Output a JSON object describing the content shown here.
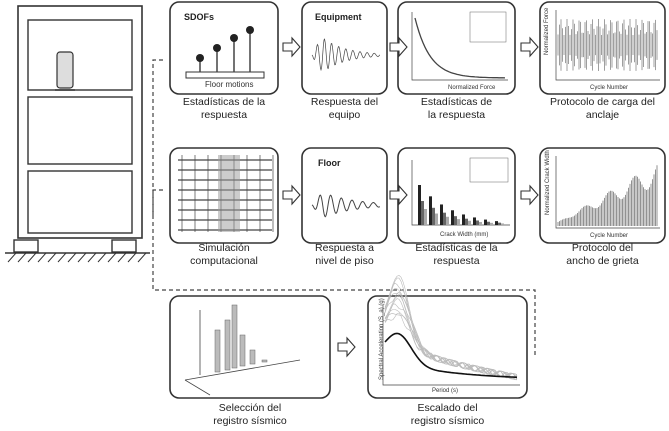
{
  "panels": [
    {
      "caption": [
        "Estadísticas de la",
        "respuesta"
      ],
      "labels": [
        "SDOFs",
        "Floor motions"
      ]
    },
    {
      "caption": [
        "Respuesta del",
        "equipo"
      ],
      "labels": [
        "Equipment"
      ]
    },
    {
      "caption": [
        "Estadísticas de",
        "la respuesta"
      ],
      "labels": [
        "Normalized Force"
      ]
    },
    {
      "caption": [
        "Protocolo de carga del",
        "anclaje"
      ],
      "labels": [
        "Cycle Number",
        "Normalized Force"
      ]
    },
    {
      "caption": [
        "Simulación",
        "computacional"
      ],
      "labels": []
    },
    {
      "caption": [
        "Respuesta a",
        "nivel de piso"
      ],
      "labels": [
        "Floor"
      ]
    },
    {
      "caption": [
        "Estadísticas de la",
        "respuesta"
      ],
      "labels": [
        "Crack Width (mm)"
      ]
    },
    {
      "caption": [
        "Protocolo del",
        "ancho de grieta"
      ],
      "labels": [
        "Cycle Number",
        "Normalized Crack Width"
      ]
    },
    {
      "caption": [
        "Selección del",
        "registro sísmico"
      ],
      "labels": []
    },
    {
      "caption": [
        "Escalado del",
        "registro sísmico"
      ],
      "labels": [
        "Period (s)",
        "Spectral Acceleration (S_a) (g)"
      ]
    }
  ]
}
